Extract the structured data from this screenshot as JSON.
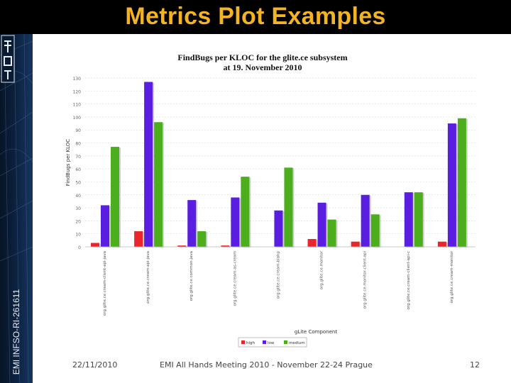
{
  "slide": {
    "title": "Metrics Plot Examples",
    "vertical_label": "EMI INFSO-RI-261611",
    "footer_date": "22/11/2010",
    "footer_center": "EMI All Hands Meeting 2010 - November 22-24 Prague",
    "page_number": "12"
  },
  "colors": {
    "title": "#f4b323",
    "band": "#0d2444",
    "high": "#e8262c",
    "low": "#5a1ee0",
    "medium": "#4cae1c",
    "grid": "#dddddd"
  },
  "chart_data": {
    "type": "bar",
    "title": "FindBugs per KLOC for the glite.ce subsystem",
    "subtitle": "at 19. November 2010",
    "xlabel": "gLite Component",
    "ylabel": "FindBugs per KLOC",
    "ylim": [
      0,
      130
    ],
    "yticks": [
      0,
      10,
      20,
      30,
      40,
      50,
      60,
      70,
      80,
      90,
      100,
      110,
      120,
      130
    ],
    "grid": true,
    "legend_position": "bottom",
    "categories": [
      "org.glite.ce.cream-client-api-java",
      "org.glite.ce.cream-api-java",
      "org.glite.ce.common-java",
      "org.glite.ce.cream-as-cream",
      "org.glite.ce.cream-blahp",
      "org.glite.ce.monitor",
      "org.glite.ce.monitor-client-api",
      "org.glite.ce.cream-client-api-c",
      "org.glite.ce.cream-monitor"
    ],
    "series": [
      {
        "name": "high",
        "color": "#e8262c",
        "values": [
          3,
          12,
          1,
          1,
          0,
          6,
          4,
          0,
          4
        ]
      },
      {
        "name": "low",
        "color": "#5a1ee0",
        "values": [
          32,
          127,
          36,
          38,
          28,
          34,
          40,
          42,
          95
        ]
      },
      {
        "name": "medium",
        "color": "#4cae1c",
        "values": [
          77,
          96,
          12,
          54,
          61,
          21,
          25,
          42,
          99
        ]
      }
    ]
  }
}
